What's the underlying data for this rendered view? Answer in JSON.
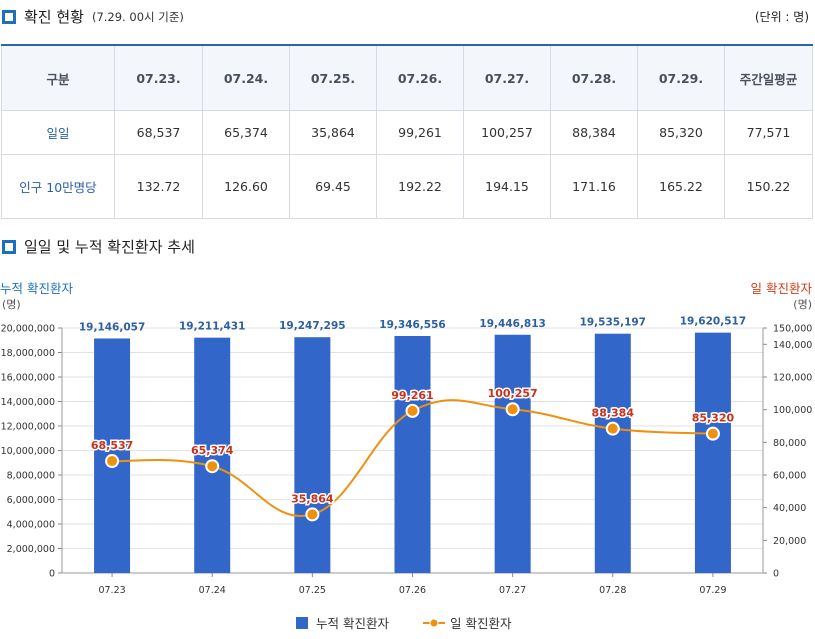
{
  "header": {
    "title": "확진 현황",
    "subtitle": "(7.29. 00시 기준)",
    "unit": "(단위 : 명)"
  },
  "table": {
    "columns": [
      "구분",
      "07.23.",
      "07.24.",
      "07.25.",
      "07.26.",
      "07.27.",
      "07.28.",
      "07.29.",
      "주간일평균"
    ],
    "rows": [
      {
        "label": "일일",
        "values": [
          "68,537",
          "65,374",
          "35,864",
          "99,261",
          "100,257",
          "88,384",
          "85,320",
          "77,571"
        ]
      },
      {
        "label": "인구 10만명당",
        "values": [
          "132.72",
          "126.60",
          "69.45",
          "192.22",
          "194.15",
          "171.16",
          "165.22",
          "150.22"
        ]
      }
    ]
  },
  "chart_section": {
    "title": "일일 및 누적 확진환자 추세"
  },
  "chart_data": {
    "type": "bar",
    "categories": [
      "07.23",
      "07.24",
      "07.25",
      "07.26",
      "07.27",
      "07.28",
      "07.29"
    ],
    "left_axis": {
      "label": "누적 확진환자",
      "unit": "(명)",
      "ylim": [
        0,
        20000000
      ],
      "ticks": [
        "0",
        "2,000,000",
        "4,000,000",
        "6,000,000",
        "8,000,000",
        "10,000,000",
        "12,000,000",
        "14,000,000",
        "16,000,000",
        "18,000,000",
        "20,000,000"
      ]
    },
    "right_axis": {
      "label": "일 확진환자",
      "unit": "(명)",
      "ylim": [
        0,
        150000
      ],
      "ticks": [
        "0",
        "20,000",
        "40,000",
        "60,000",
        "80,000",
        "100,000",
        "120,000",
        "140,000",
        "150,000"
      ]
    },
    "series": [
      {
        "name": "누적 확진환자",
        "type": "bar",
        "axis": "left",
        "color": "#3266c8",
        "values": [
          19146057,
          19211431,
          19247295,
          19346556,
          19446813,
          19535197,
          19620517
        ],
        "labels": [
          "19,146,057",
          "19,211,431",
          "19,247,295",
          "19,346,556",
          "19,446,813",
          "19,535,197",
          "19,620,517"
        ]
      },
      {
        "name": "일 확진환자",
        "type": "line",
        "axis": "right",
        "color": "#f0900f",
        "values": [
          68537,
          65374,
          35864,
          99261,
          100257,
          88384,
          85320
        ],
        "labels": [
          "68,537",
          "65,374",
          "35,864",
          "99,261",
          "100,257",
          "88,384",
          "85,320"
        ]
      }
    ],
    "grid": true,
    "legend": "bottom"
  }
}
